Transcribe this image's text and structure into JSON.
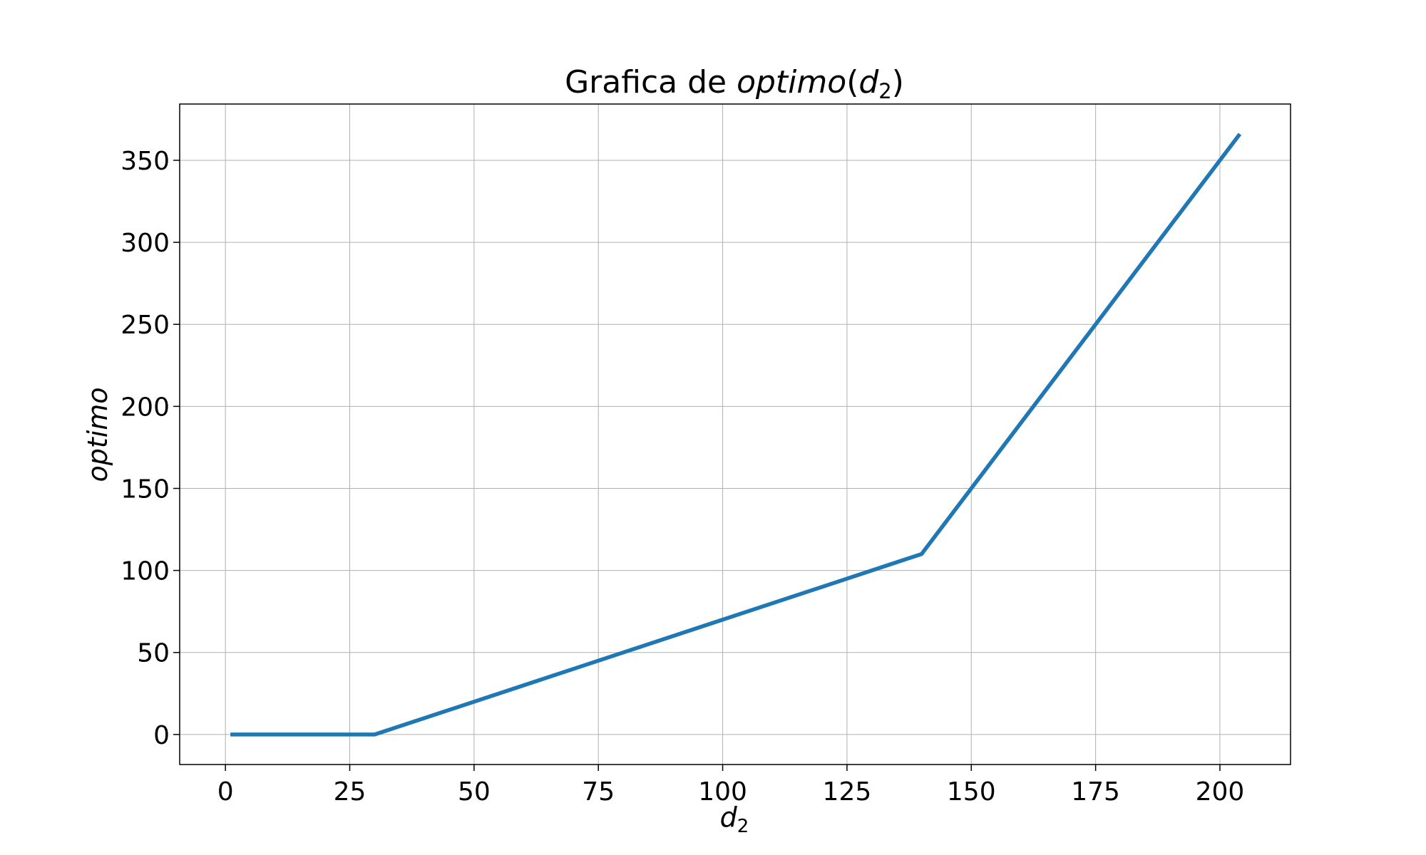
{
  "chart_data": {
    "type": "line",
    "title": {
      "prefix": "Grafica de ",
      "func": "optimo",
      "open": "(",
      "var": "d",
      "sub": "2",
      "close": ")"
    },
    "xlabel": {
      "var": "d",
      "sub": "2"
    },
    "ylabel": "optimo",
    "xlim": [
      -9.2,
      214.2
    ],
    "ylim": [
      -18.3,
      384.3
    ],
    "xticks": [
      0,
      25,
      50,
      75,
      100,
      125,
      150,
      175,
      200
    ],
    "yticks": [
      0,
      50,
      100,
      150,
      200,
      250,
      300,
      350
    ],
    "grid": true,
    "series": [
      {
        "color": "#1f77b4",
        "x": [
          1,
          30,
          140,
          204
        ],
        "y": [
          0,
          0,
          110,
          366
        ]
      }
    ]
  }
}
